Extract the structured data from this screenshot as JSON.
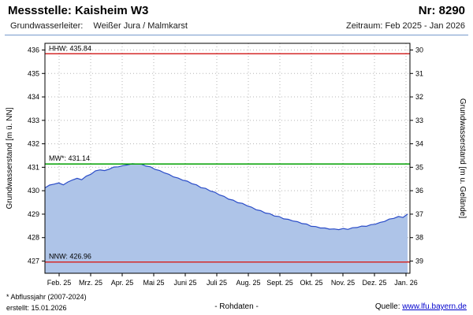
{
  "header": {
    "station_label": "Messstelle: Kaisheim W3",
    "number_label": "Nr: 8290",
    "aquifer_label": "Grundwasserleiter:",
    "aquifer_value": "Weißer Jura / Malmkarst",
    "period_label": "Zeitraum: Feb 2025 - Jan 2026"
  },
  "footer": {
    "footnote": "* Abflussjahr (2007-2024)",
    "created": "erstellt: 15.01.2026",
    "center": "- Rohdaten -",
    "source_label": "Quelle: ",
    "source_link": "www.lfu.bayern.de"
  },
  "chart_data": {
    "type": "area",
    "ylabel_left": "Grundwasserstand [m ü. NN]",
    "ylabel_right": "Grundwasserstand [m u. Gelände]",
    "ylim_left": [
      426.5,
      436.3
    ],
    "ylim_right": [
      39.5,
      29.7
    ],
    "grid": true,
    "y_left_ticks": [
      436,
      435,
      434,
      433,
      432,
      431,
      430,
      429,
      428,
      427
    ],
    "y_right_ticks": [
      30,
      31,
      32,
      33,
      34,
      35,
      36,
      37,
      38,
      39
    ],
    "x_tick_labels": [
      "Feb. 25",
      "Mrz. 25",
      "Apr. 25",
      "Mai 25",
      "Juni 25",
      "Juli 25",
      "Aug. 25",
      "Sept. 25",
      "Okt. 25",
      "Nov. 25",
      "Dez. 25",
      "Jan. 26"
    ],
    "ref_lines": [
      {
        "name": "HHW",
        "label": "HHW: 435.84",
        "value": 435.84,
        "color": "#d42a2a"
      },
      {
        "name": "MW",
        "label": "MW*: 431.14",
        "value": 431.14,
        "color": "#00a000"
      },
      {
        "name": "NNW",
        "label": "NNW: 426.96",
        "value": 426.96,
        "color": "#d42a2a"
      }
    ],
    "series": [
      {
        "name": "Grundwasserstand Rohdaten [m ü. NN]",
        "values": [
          430.12,
          430.24,
          430.28,
          430.33,
          430.25,
          430.37,
          430.46,
          430.53,
          430.47,
          430.62,
          430.7,
          430.85,
          430.89,
          430.86,
          430.92,
          431.01,
          431.02,
          431.07,
          431.1,
          431.15,
          431.14,
          431.13,
          431.05,
          431.02,
          430.91,
          430.86,
          430.76,
          430.7,
          430.59,
          430.54,
          430.45,
          430.41,
          430.3,
          430.25,
          430.13,
          430.1,
          429.99,
          429.94,
          429.82,
          429.76,
          429.64,
          429.6,
          429.49,
          429.46,
          429.36,
          429.3,
          429.19,
          429.15,
          429.05,
          429.02,
          428.92,
          428.9,
          428.8,
          428.78,
          428.71,
          428.68,
          428.6,
          428.58,
          428.48,
          428.47,
          428.41,
          428.41,
          428.36,
          428.37,
          428.34,
          428.39,
          428.35,
          428.42,
          428.43,
          428.49,
          428.48,
          428.55,
          428.57,
          428.65,
          428.69,
          428.79,
          428.82,
          428.9,
          428.86,
          429.0
        ]
      }
    ],
    "colors": {
      "area_fill": "#aec4e8",
      "area_stroke": "#2a4cc8",
      "grid": "#b5b5b5",
      "axis": "#000000",
      "divider": "#7799cc",
      "link": "#0000cc"
    }
  }
}
